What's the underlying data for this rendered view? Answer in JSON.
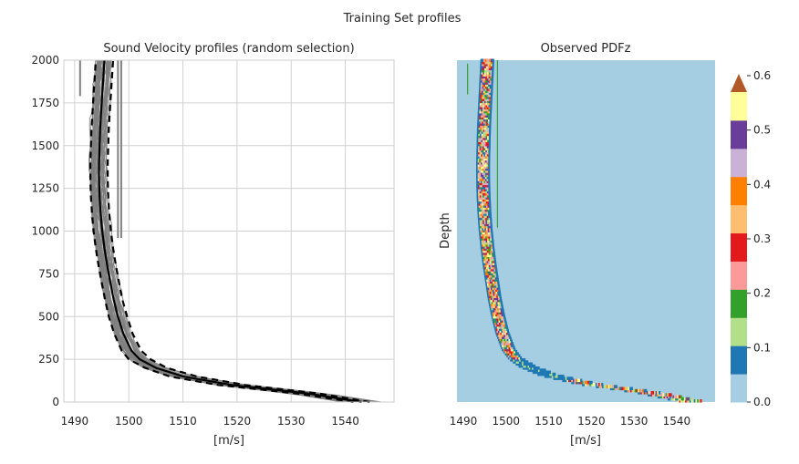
{
  "figure": {
    "suptitle": "Training Set profiles"
  },
  "chart_data": [
    {
      "type": "line",
      "title": "Sound Velocity profiles (random selection)",
      "xlabel": "[m/s]",
      "ylabel": "",
      "xlim": [
        1488,
        1549
      ],
      "ylim": [
        0,
        2000
      ],
      "x_ticks": [
        1490,
        1500,
        1510,
        1520,
        1530,
        1540
      ],
      "y_ticks": [
        0,
        250,
        500,
        750,
        1000,
        1250,
        1500,
        1750,
        2000
      ],
      "grid": true,
      "colors": {
        "profiles": "#808080",
        "mean": "#000000",
        "spread": "#000000"
      },
      "series": [
        {
          "role": "profiles",
          "depth": [
            0,
            50,
            100,
            150,
            200,
            250,
            300,
            400,
            500,
            600,
            700,
            800,
            900,
            1000,
            1100,
            1200,
            1300,
            1400,
            1500,
            1600,
            1700,
            1800,
            1900,
            2000
          ],
          "velocity": [
            1543,
            1533,
            1519,
            1510,
            1505,
            1502,
            1500.5,
            1499,
            1498,
            1497.2,
            1496.6,
            1496,
            1495.5,
            1495.1,
            1494.8,
            1494.6,
            1494.5,
            1494.5,
            1494.6,
            1494.7,
            1494.9,
            1495.1,
            1495.3,
            1495.5
          ]
        },
        {
          "role": "mean",
          "depth": [
            0,
            50,
            100,
            150,
            200,
            250,
            300,
            400,
            500,
            600,
            700,
            800,
            900,
            1000,
            1100,
            1200,
            1300,
            1400,
            1500,
            1600,
            1700,
            1800,
            1900,
            2000
          ],
          "velocity": [
            1543,
            1533,
            1519,
            1510,
            1505,
            1502,
            1500.5,
            1499,
            1498,
            1497.2,
            1496.6,
            1496,
            1495.5,
            1495.1,
            1494.8,
            1494.6,
            1494.5,
            1494.5,
            1494.6,
            1494.7,
            1494.9,
            1495.1,
            1495.3,
            1495.5
          ]
        },
        {
          "role": "lower",
          "depth": [
            0,
            50,
            100,
            150,
            200,
            250,
            300,
            400,
            500,
            600,
            700,
            800,
            900,
            1000,
            1100,
            1200,
            1300,
            1400,
            1500,
            1600,
            1700,
            1800,
            1900,
            2000
          ],
          "velocity": [
            1541.5,
            1531,
            1516.5,
            1507.5,
            1503,
            1500,
            1498.7,
            1497.3,
            1496.3,
            1495.6,
            1495,
            1494.4,
            1493.9,
            1493.5,
            1493.2,
            1493,
            1492.9,
            1492.9,
            1493,
            1493.1,
            1493.3,
            1493.5,
            1493.7,
            1493.9
          ]
        },
        {
          "role": "upper",
          "depth": [
            0,
            50,
            100,
            150,
            200,
            250,
            300,
            400,
            500,
            600,
            700,
            800,
            900,
            1000,
            1100,
            1200,
            1300,
            1400,
            1500,
            1600,
            1700,
            1800,
            1900,
            2000
          ],
          "velocity": [
            1544.5,
            1535,
            1521.5,
            1512.5,
            1507,
            1504,
            1502.3,
            1500.7,
            1499.7,
            1498.8,
            1498.2,
            1497.6,
            1497.1,
            1496.7,
            1496.4,
            1496.2,
            1496.1,
            1496.1,
            1496.2,
            1496.3,
            1496.5,
            1496.7,
            1496.9,
            1497.1
          ]
        }
      ]
    },
    {
      "type": "heatmap",
      "title": "Observed PDFz",
      "xlabel": "[m/s]",
      "ylabel": "Depth",
      "xlim": [
        1488.5,
        1549
      ],
      "ylim": [
        0,
        2000
      ],
      "x_ticks": [
        1490,
        1500,
        1510,
        1520,
        1530,
        1540
      ],
      "colorbar": {
        "levels": [
          0.0,
          0.05,
          0.1,
          0.15,
          0.2,
          0.25,
          0.3,
          0.35,
          0.4,
          0.45,
          0.5,
          0.55,
          0.6
        ],
        "ticks": [
          "0.0",
          "0.1",
          "0.2",
          "0.3",
          "0.4",
          "0.5",
          "0.6"
        ],
        "colors": [
          "#a6cee3",
          "#1f78b4",
          "#b2df8a",
          "#33a02c",
          "#fb9a99",
          "#e31a1c",
          "#fdbf6f",
          "#ff7f00",
          "#cab2d6",
          "#6a3d9a",
          "#ffff99",
          "#b15928"
        ],
        "extend": "max"
      },
      "background": "#a6cee3",
      "ridge": {
        "depth": [
          0,
          50,
          100,
          150,
          200,
          250,
          300,
          400,
          500,
          600,
          700,
          800,
          900,
          1000,
          1100,
          1200,
          1300,
          1400,
          1500,
          1600,
          1700,
          1800,
          1900,
          2000
        ],
        "velocity": [
          1543,
          1533,
          1519,
          1510,
          1505,
          1502,
          1500.5,
          1499,
          1498,
          1497.2,
          1496.6,
          1496,
          1495.5,
          1495.1,
          1494.8,
          1494.6,
          1494.5,
          1494.5,
          1494.6,
          1494.7,
          1494.9,
          1495.1,
          1495.3,
          1495.5
        ]
      }
    }
  ]
}
